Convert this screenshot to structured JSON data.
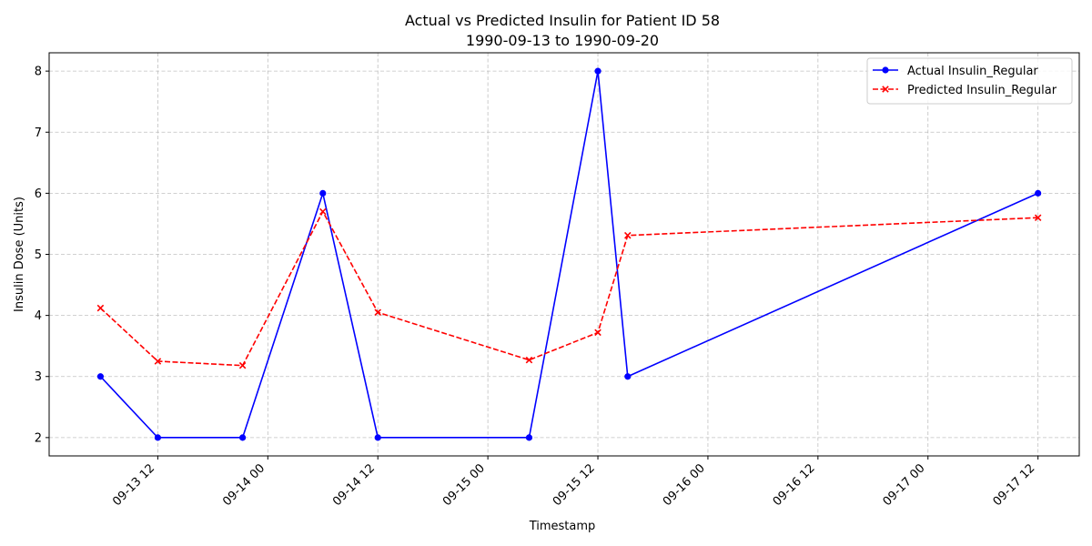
{
  "chart_data": {
    "type": "line",
    "title": "Actual vs Predicted Insulin for Patient ID 58",
    "subtitle": "1990-09-13 to 1990-09-20",
    "xlabel": "Timestamp",
    "ylabel": "Insulin Dose (Units)",
    "x_tick_labels": [
      "09-13 12",
      "09-14 00",
      "09-14 12",
      "09-15 00",
      "09-15 12",
      "09-16 00",
      "09-16 12",
      "09-17 00",
      "09-17 12"
    ],
    "x_ticks": [
      "1990-09-13 12:00",
      "1990-09-14 00:00",
      "1990-09-14 12:00",
      "1990-09-15 00:00",
      "1990-09-15 12:00",
      "1990-09-16 00:00",
      "1990-09-16 12:00",
      "1990-09-17 00:00",
      "1990-09-17 12:00"
    ],
    "xlim": [
      "1990-09-13 00:09",
      "1990-09-17 16:30"
    ],
    "ylim": [
      1.7,
      8.3
    ],
    "y_ticks": [
      2,
      3,
      4,
      5,
      6,
      7,
      8
    ],
    "grid": true,
    "legend_position": "top-right",
    "series": [
      {
        "name": "Actual Insulin_Regular",
        "color": "#0000ff",
        "line_style": "solid",
        "marker": "circle",
        "points": [
          {
            "x": "1990-09-13 05:45",
            "y": 3
          },
          {
            "x": "1990-09-13 12:00",
            "y": 2
          },
          {
            "x": "1990-09-13 21:15",
            "y": 2
          },
          {
            "x": "1990-09-14 06:00",
            "y": 6
          },
          {
            "x": "1990-09-14 12:00",
            "y": 2
          },
          {
            "x": "1990-09-15 04:30",
            "y": 2
          },
          {
            "x": "1990-09-15 12:00",
            "y": 8
          },
          {
            "x": "1990-09-15 15:15",
            "y": 3
          },
          {
            "x": "1990-09-17 12:00",
            "y": 6
          }
        ]
      },
      {
        "name": "Predicted Insulin_Regular",
        "color": "#ff0000",
        "line_style": "dashed",
        "marker": "x",
        "points": [
          {
            "x": "1990-09-13 05:45",
            "y": 4.12
          },
          {
            "x": "1990-09-13 12:00",
            "y": 3.25
          },
          {
            "x": "1990-09-13 21:15",
            "y": 3.18
          },
          {
            "x": "1990-09-14 06:00",
            "y": 5.7
          },
          {
            "x": "1990-09-14 12:00",
            "y": 4.05
          },
          {
            "x": "1990-09-15 04:30",
            "y": 3.27
          },
          {
            "x": "1990-09-15 12:00",
            "y": 3.72
          },
          {
            "x": "1990-09-15 15:15",
            "y": 5.31
          },
          {
            "x": "1990-09-17 12:00",
            "y": 5.6
          }
        ]
      }
    ]
  }
}
